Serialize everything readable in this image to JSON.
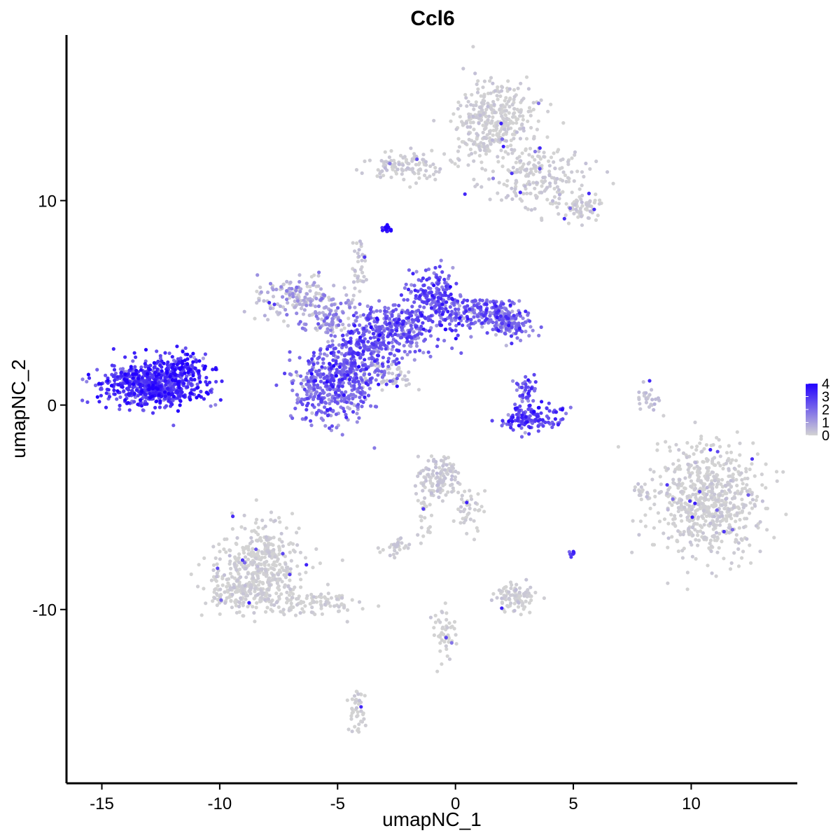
{
  "chart_data": {
    "type": "scatter",
    "title": "Ccl6",
    "xlabel": "umapNC_1",
    "ylabel": "umapNC_2",
    "xlim": [
      -16.5,
      14.5
    ],
    "ylim": [
      -18.5,
      18.1
    ],
    "xticks": [
      -15,
      -10,
      -5,
      0,
      5,
      10
    ],
    "xtick_labels": [
      "-15",
      "-10",
      "-5",
      "0",
      "5",
      "10"
    ],
    "yticks": [
      -10,
      0,
      10
    ],
    "ytick_labels": [
      "-10",
      "0",
      "10"
    ],
    "grid": false,
    "colorscale": {
      "low": "#d3d3d3",
      "high": "#2200ff",
      "min": 0,
      "max": 4
    },
    "legend": {
      "position": "right",
      "values": [
        4,
        3,
        2,
        1,
        0
      ],
      "labels": [
        "4",
        "3",
        "2",
        "1",
        "0"
      ]
    },
    "clusters": [
      {
        "cx": -12.9,
        "cy": 1.0,
        "sx": 1.0,
        "sy": 0.55,
        "n": 650,
        "expr": 2.9
      },
      {
        "cx": -11.6,
        "cy": 1.7,
        "sx": 0.55,
        "sy": 0.45,
        "n": 120,
        "expr": 3.3
      },
      {
        "cx": -5.2,
        "cy": 0.9,
        "sx": 0.9,
        "sy": 0.9,
        "n": 420,
        "expr": 2.0
      },
      {
        "cx": -3.9,
        "cy": 2.8,
        "sx": 0.7,
        "sy": 0.9,
        "n": 260,
        "expr": 2.3
      },
      {
        "cx": -2.4,
        "cy": 3.8,
        "sx": 0.8,
        "sy": 0.6,
        "n": 230,
        "expr": 2.0
      },
      {
        "cx": -0.9,
        "cy": 5.2,
        "sx": 0.6,
        "sy": 0.8,
        "n": 200,
        "expr": 2.4
      },
      {
        "cx": 1.2,
        "cy": 4.5,
        "sx": 0.9,
        "sy": 0.45,
        "n": 210,
        "expr": 2.2
      },
      {
        "cx": 2.3,
        "cy": 3.9,
        "sx": 0.4,
        "sy": 0.35,
        "n": 90,
        "expr": 1.8
      },
      {
        "cx": -6.8,
        "cy": 5.3,
        "sx": 0.9,
        "sy": 0.45,
        "n": 150,
        "expr": 0.6
      },
      {
        "cx": -5.2,
        "cy": 4.2,
        "sx": 0.7,
        "sy": 0.45,
        "n": 110,
        "expr": 0.9
      },
      {
        "cx": -4.1,
        "cy": 6.7,
        "sx": 0.15,
        "sy": 0.6,
        "n": 35,
        "expr": 0.2
      },
      {
        "cx": -2.8,
        "cy": 1.3,
        "sx": 0.5,
        "sy": 0.35,
        "n": 40,
        "expr": 0.2
      },
      {
        "cx": -2.9,
        "cy": 8.6,
        "sx": 0.1,
        "sy": 0.1,
        "n": 18,
        "expr": 3.3
      },
      {
        "cx": 3.3,
        "cy": -0.6,
        "sx": 0.6,
        "sy": 0.3,
        "n": 140,
        "expr": 2.5
      },
      {
        "cx": 3.1,
        "cy": 0.7,
        "sx": 0.3,
        "sy": 0.4,
        "n": 40,
        "expr": 2.2
      },
      {
        "cx": 8.2,
        "cy": 0.4,
        "sx": 0.2,
        "sy": 0.4,
        "n": 30,
        "expr": 0.3
      },
      {
        "cx": 1.7,
        "cy": 13.9,
        "sx": 0.8,
        "sy": 0.9,
        "n": 360,
        "expr": 0.05
      },
      {
        "cx": -1.9,
        "cy": 11.7,
        "sx": 1.0,
        "sy": 0.35,
        "n": 110,
        "expr": 0.1
      },
      {
        "cx": 3.5,
        "cy": 11.3,
        "sx": 1.1,
        "sy": 0.8,
        "n": 200,
        "expr": 0.1
      },
      {
        "cx": 5.3,
        "cy": 9.6,
        "sx": 0.5,
        "sy": 0.3,
        "n": 70,
        "expr": 0.05
      },
      {
        "cx": -8.2,
        "cy": -7.8,
        "sx": 0.9,
        "sy": 1.1,
        "n": 380,
        "expr": 0.02
      },
      {
        "cx": -9.1,
        "cy": -9.1,
        "sx": 0.8,
        "sy": 0.5,
        "n": 160,
        "expr": 0.02
      },
      {
        "cx": -5.9,
        "cy": -9.7,
        "sx": 0.9,
        "sy": 0.3,
        "n": 90,
        "expr": 0.0
      },
      {
        "cx": -4.2,
        "cy": -14.8,
        "sx": 0.2,
        "sy": 0.5,
        "n": 45,
        "expr": 0.0
      },
      {
        "cx": -0.7,
        "cy": -3.6,
        "sx": 0.45,
        "sy": 0.5,
        "n": 120,
        "expr": 0.15
      },
      {
        "cx": 0.6,
        "cy": -5.1,
        "sx": 0.3,
        "sy": 0.6,
        "n": 40,
        "expr": 0.05
      },
      {
        "cx": -1.3,
        "cy": -5.4,
        "sx": 0.2,
        "sy": 0.7,
        "n": 30,
        "expr": 0.0
      },
      {
        "cx": -2.5,
        "cy": -6.9,
        "sx": 0.3,
        "sy": 0.2,
        "n": 30,
        "expr": 0.1
      },
      {
        "cx": 2.5,
        "cy": -9.4,
        "sx": 0.45,
        "sy": 0.35,
        "n": 90,
        "expr": 0.05
      },
      {
        "cx": -0.5,
        "cy": -11.2,
        "sx": 0.25,
        "sy": 0.7,
        "n": 50,
        "expr": 0.0
      },
      {
        "cx": 10.7,
        "cy": -4.6,
        "sx": 1.1,
        "sy": 1.3,
        "n": 650,
        "expr": 0.02
      },
      {
        "cx": 8.0,
        "cy": -4.3,
        "sx": 0.2,
        "sy": 0.3,
        "n": 20,
        "expr": 0.1
      },
      {
        "cx": 5.0,
        "cy": -7.3,
        "sx": 0.08,
        "sy": 0.08,
        "n": 8,
        "expr": 3.0
      }
    ]
  },
  "colors": {
    "axis": "#000000",
    "low": "#d3d3d3",
    "high": "#2200ff"
  }
}
